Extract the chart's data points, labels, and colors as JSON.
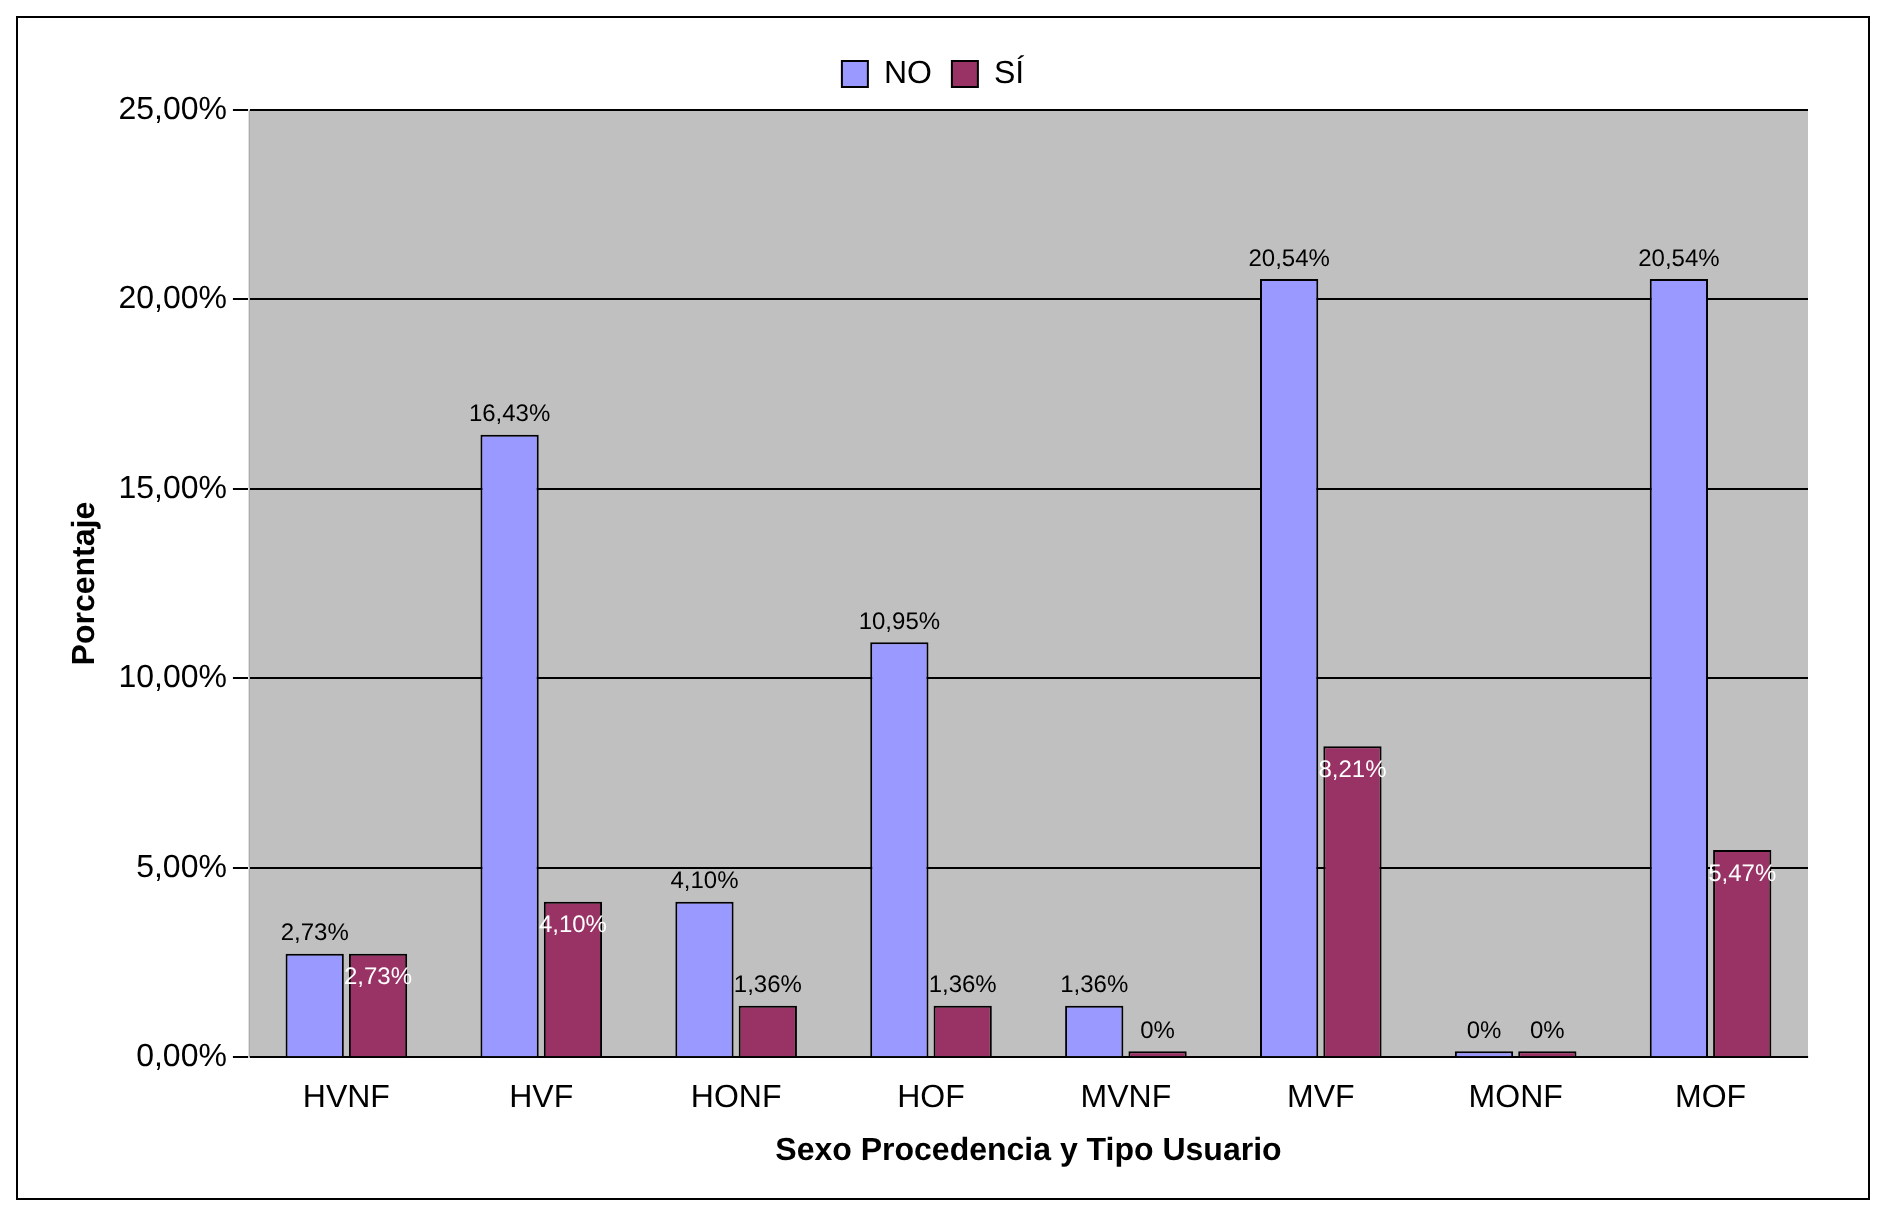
{
  "chart_data": {
    "type": "bar",
    "xlabel": "Sexo Procedencia y Tipo Usuario",
    "ylabel": "Porcentaje",
    "categories": [
      "HVNF",
      "HVF",
      "HONF",
      "HOF",
      "MVNF",
      "MVF",
      "MONF",
      "MOF"
    ],
    "series": [
      {
        "name": "NO",
        "color": "#9999ff",
        "values": [
          2.73,
          16.43,
          4.1,
          10.95,
          1.36,
          20.54,
          0,
          20.54
        ],
        "value_labels": [
          "2,73%",
          "16,43%",
          "4,10%",
          "10,95%",
          "1,36%",
          "20,54%",
          "0%",
          "20,54%"
        ]
      },
      {
        "name": "SÍ",
        "color": "#993366",
        "values": [
          2.73,
          4.1,
          1.36,
          1.36,
          0,
          8.21,
          0,
          5.47
        ],
        "value_labels": [
          "2,73%",
          "4,10%",
          "1,36%",
          "1,36%",
          "0%",
          "8,21%",
          "0%",
          "5,47%"
        ]
      }
    ],
    "ylim": [
      0,
      25
    ],
    "yticks": [
      {
        "value": 0,
        "label": "0,00%"
      },
      {
        "value": 5,
        "label": "5,00%"
      },
      {
        "value": 10,
        "label": "10,00%"
      },
      {
        "value": 15,
        "label": "15,00%"
      },
      {
        "value": 20,
        "label": "20,00%"
      },
      {
        "value": 25,
        "label": "25,00%"
      }
    ],
    "grid": "y",
    "legend": "top"
  }
}
